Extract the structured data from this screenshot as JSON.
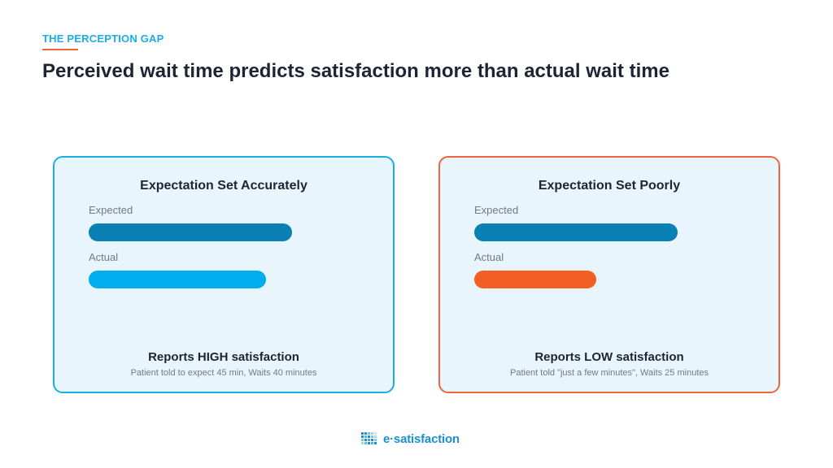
{
  "eyebrow": "THE PERCEPTION GAP",
  "headline": "Perceived wait time predicts satisfaction more than actual wait time",
  "colors": {
    "eyebrow": "#1aaee6",
    "eyebrow_rule": "#f0643c",
    "expected_bar": "#0a80b5",
    "actual_bar_good": "#00aeef",
    "actual_bar_poor": "#f25f22"
  },
  "cards": [
    {
      "title": "Expectation Set Accurately",
      "expected_label": "Expected",
      "actual_label": "Actual",
      "expected_fraction": 1.0,
      "actual_fraction": 0.87,
      "result": "Reports HIGH satisfaction",
      "detail": "Patient told to expect 45 min, Waits 40 minutes"
    },
    {
      "title": "Expectation Set Poorly",
      "expected_label": "Expected",
      "actual_label": "Actual",
      "expected_fraction": 1.0,
      "actual_fraction": 0.6,
      "result": "Reports LOW satisfaction",
      "detail": "Patient told \"just a few minutes\", Waits 25 minutes"
    }
  ],
  "logo": {
    "icon": "e-satisfaction-logo-icon",
    "text": "e·satisfaction"
  }
}
